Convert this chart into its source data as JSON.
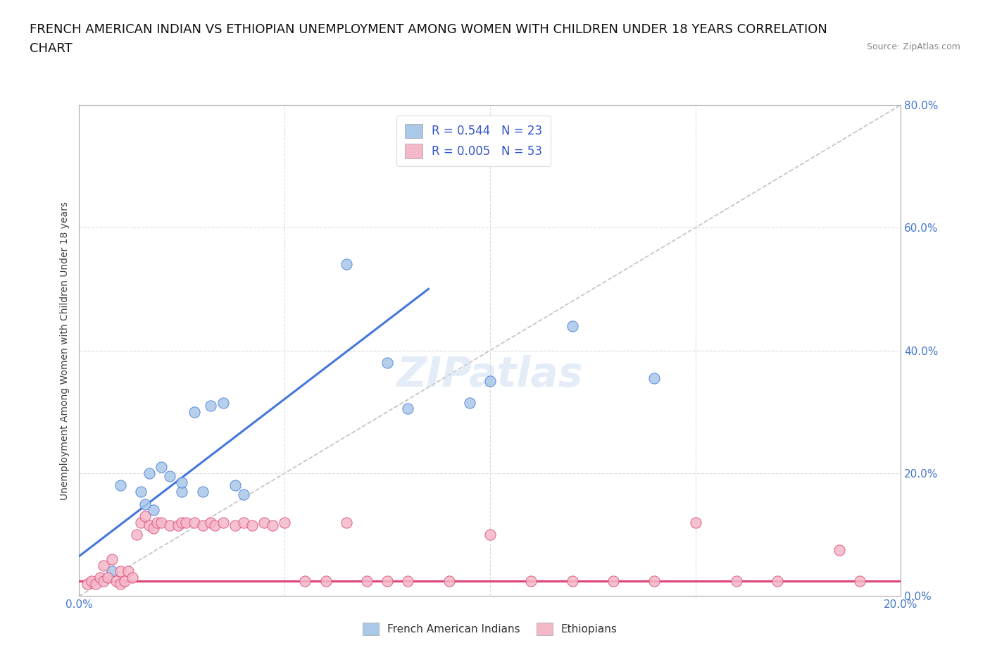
{
  "title_line1": "FRENCH AMERICAN INDIAN VS ETHIOPIAN UNEMPLOYMENT AMONG WOMEN WITH CHILDREN UNDER 18 YEARS CORRELATION",
  "title_line2": "CHART",
  "source_text": "Source: ZipAtlas.com",
  "ylabel": "Unemployment Among Women with Children Under 18 years",
  "xlim": [
    0.0,
    0.2
  ],
  "ylim": [
    0.0,
    0.8
  ],
  "ytick_vals": [
    0.0,
    0.2,
    0.4,
    0.6,
    0.8
  ],
  "xtick_vals": [
    0.0,
    0.05,
    0.1,
    0.15,
    0.2
  ],
  "blue_scatter_x": [
    0.008,
    0.01,
    0.015,
    0.016,
    0.017,
    0.018,
    0.02,
    0.022,
    0.025,
    0.025,
    0.028,
    0.03,
    0.032,
    0.035,
    0.038,
    0.04,
    0.065,
    0.075,
    0.08,
    0.095,
    0.1,
    0.12,
    0.14
  ],
  "blue_scatter_y": [
    0.04,
    0.18,
    0.17,
    0.15,
    0.2,
    0.14,
    0.21,
    0.195,
    0.17,
    0.185,
    0.3,
    0.17,
    0.31,
    0.315,
    0.18,
    0.165,
    0.54,
    0.38,
    0.305,
    0.315,
    0.35,
    0.44,
    0.355
  ],
  "pink_scatter_x": [
    0.002,
    0.003,
    0.004,
    0.005,
    0.006,
    0.006,
    0.007,
    0.008,
    0.009,
    0.01,
    0.01,
    0.011,
    0.012,
    0.013,
    0.014,
    0.015,
    0.016,
    0.017,
    0.018,
    0.019,
    0.02,
    0.022,
    0.024,
    0.025,
    0.026,
    0.028,
    0.03,
    0.032,
    0.033,
    0.035,
    0.038,
    0.04,
    0.042,
    0.045,
    0.047,
    0.05,
    0.055,
    0.06,
    0.065,
    0.07,
    0.075,
    0.08,
    0.09,
    0.1,
    0.11,
    0.12,
    0.13,
    0.14,
    0.15,
    0.16,
    0.17,
    0.185,
    0.19
  ],
  "pink_scatter_y": [
    0.02,
    0.025,
    0.02,
    0.03,
    0.025,
    0.05,
    0.03,
    0.06,
    0.025,
    0.02,
    0.04,
    0.025,
    0.04,
    0.03,
    0.1,
    0.12,
    0.13,
    0.115,
    0.11,
    0.12,
    0.12,
    0.115,
    0.115,
    0.12,
    0.12,
    0.12,
    0.115,
    0.12,
    0.115,
    0.12,
    0.115,
    0.12,
    0.115,
    0.12,
    0.115,
    0.12,
    0.025,
    0.025,
    0.12,
    0.025,
    0.025,
    0.025,
    0.025,
    0.1,
    0.025,
    0.025,
    0.025,
    0.025,
    0.12,
    0.025,
    0.025,
    0.075,
    0.025
  ],
  "blue_line_x": [
    0.0,
    0.085
  ],
  "blue_line_y": [
    0.065,
    0.5
  ],
  "pink_line_x": [
    0.0,
    0.2
  ],
  "pink_line_y": [
    0.025,
    0.025
  ],
  "diagonal_line_x": [
    0.0,
    0.2
  ],
  "diagonal_line_y": [
    0.0,
    0.8
  ],
  "blue_scatter_color": "#aac8e8",
  "blue_line_color": "#4477dd",
  "pink_scatter_color": "#f4b8c8",
  "pink_line_color": "#dd4477",
  "diagonal_color": "#bbbbbb",
  "legend_blue_text": "R = 0.544   N = 23",
  "legend_pink_text": "R = 0.005   N = 53",
  "legend_blue_color": "#aac8e8",
  "legend_pink_color": "#f4b8c8",
  "legend_text_color": "#3355cc",
  "watermark": "ZIPatlas",
  "bg_color": "#ffffff",
  "grid_color": "#dddddd",
  "axis_color": "#aaaaaa",
  "tick_label_color": "#4477cc",
  "title_fontsize": 13,
  "axis_label_fontsize": 10,
  "tick_fontsize": 11
}
